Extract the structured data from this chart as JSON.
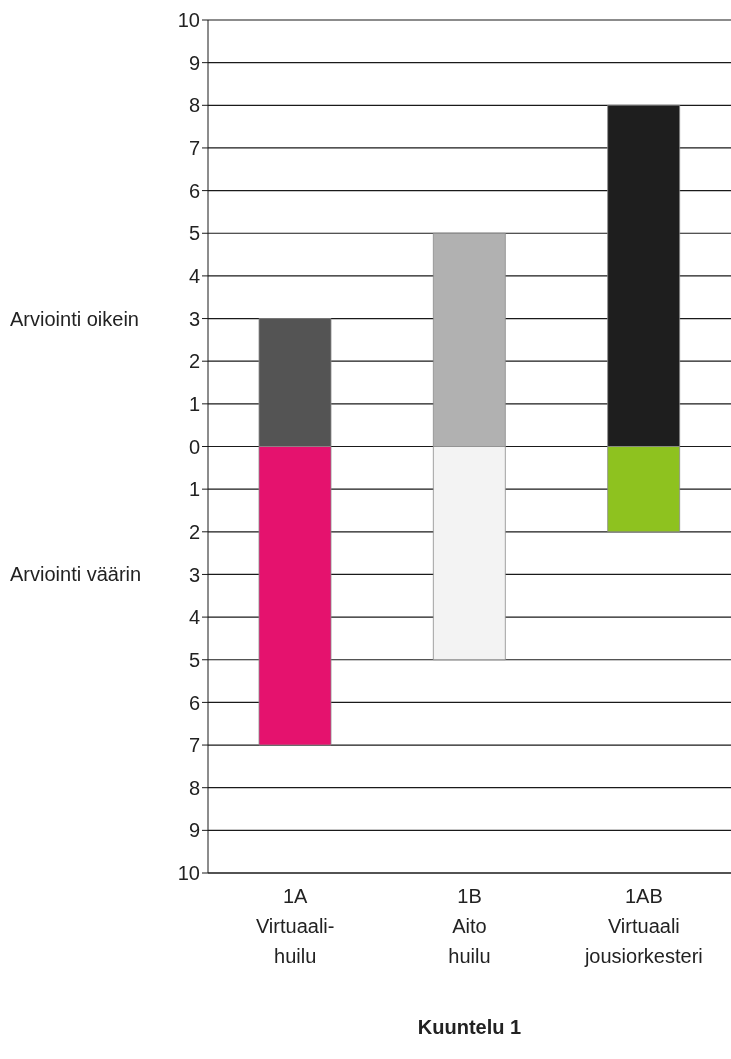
{
  "chart_data": {
    "type": "bar",
    "stacked": true,
    "xlabel": "Kuuntelu 1",
    "categories": [
      "1A\nVirtuaali-\nhuilu",
      "1B\nAito\nhuilu",
      "1AB\nVirtuaali\njousiorkesteri"
    ],
    "series": [
      {
        "values": [
          3,
          5,
          8
        ],
        "colors": [
          "#545454",
          "#b1b1b1",
          "#1e1e1e"
        ]
      },
      {
        "values": [
          -7,
          -5,
          -2
        ],
        "colors": [
          "#e5126e",
          "#f3f3f3",
          "#8ec21f"
        ]
      }
    ],
    "ylim": [
      -10,
      10
    ],
    "yticks": [
      {
        "value": -10,
        "label": "10"
      },
      {
        "value": -9,
        "label": "9"
      },
      {
        "value": -8,
        "label": "8"
      },
      {
        "value": -7,
        "label": "7"
      },
      {
        "value": -6,
        "label": "6"
      },
      {
        "value": -5,
        "label": "5"
      },
      {
        "value": -4,
        "label": "4"
      },
      {
        "value": -3,
        "label": "3"
      },
      {
        "value": -2,
        "label": "2"
      },
      {
        "value": -1,
        "label": "1"
      },
      0,
      1,
      2,
      3,
      4,
      5,
      6,
      7,
      8,
      9,
      10
    ],
    "annotations": [
      "Arviointi oikein",
      "Arviointi väärin"
    ],
    "grid": "y"
  }
}
